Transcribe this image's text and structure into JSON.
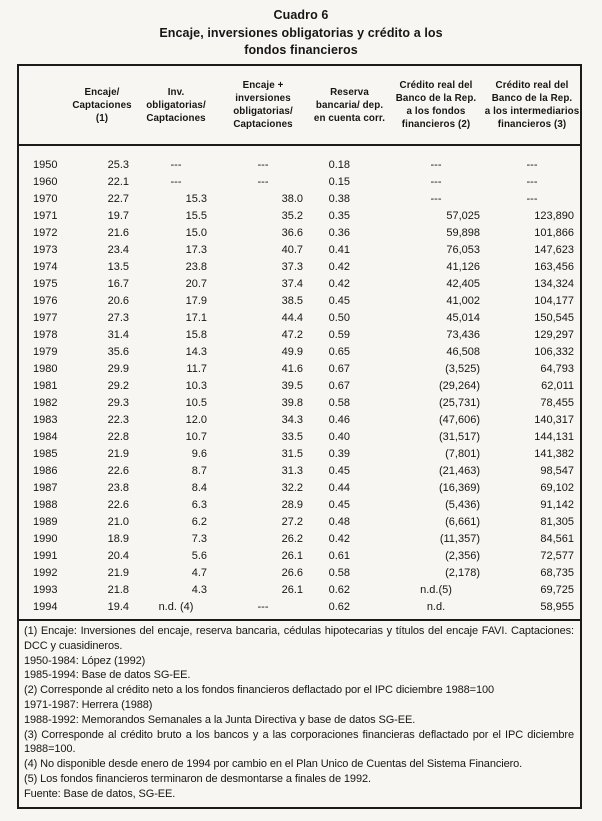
{
  "title": {
    "line1": "Cuadro 6",
    "line2": "Encaje, inversiones obligatorias y crédito a los",
    "line3": "fondos financieros"
  },
  "table": {
    "headers": [
      "",
      "Encaje/\nCaptaciones (1)",
      "Inv. obligatorias/\nCaptaciones",
      "Encaje + inversiones\nobligatorias/\nCaptaciones",
      "Reserva\nbancaria/ dep.\nen cuenta corr.",
      "Crédito real del\nBanco de la Rep.\na los fondos\nfinancieros (2)",
      "Crédito real del\nBanco de la Rep.\na los intermediarios\nfinancieros (3)"
    ],
    "rows": [
      [
        "1950",
        "25.3",
        "---",
        "---",
        "0.18",
        "---",
        "---"
      ],
      [
        "1960",
        "22.1",
        "---",
        "---",
        "0.15",
        "---",
        "---"
      ],
      [
        "1970",
        "22.7",
        "15.3",
        "38.0",
        "0.38",
        "---",
        "---"
      ],
      [
        "1971",
        "19.7",
        "15.5",
        "35.2",
        "0.35",
        "57,025",
        "123,890"
      ],
      [
        "1972",
        "21.6",
        "15.0",
        "36.6",
        "0.36",
        "59,898",
        "101,866"
      ],
      [
        "1973",
        "23.4",
        "17.3",
        "40.7",
        "0.41",
        "76,053",
        "147,623"
      ],
      [
        "1974",
        "13.5",
        "23.8",
        "37.3",
        "0.42",
        "41,126",
        "163,456"
      ],
      [
        "1975",
        "16.7",
        "20.7",
        "37.4",
        "0.42",
        "42,405",
        "134,324"
      ],
      [
        "1976",
        "20.6",
        "17.9",
        "38.5",
        "0.45",
        "41,002",
        "104,177"
      ],
      [
        "1977",
        "27.3",
        "17.1",
        "44.4",
        "0.50",
        "45,014",
        "150,545"
      ],
      [
        "1978",
        "31.4",
        "15.8",
        "47.2",
        "0.59",
        "73,436",
        "129,297"
      ],
      [
        "1979",
        "35.6",
        "14.3",
        "49.9",
        "0.65",
        "46,508",
        "106,332"
      ],
      [
        "1980",
        "29.9",
        "11.7",
        "41.6",
        "0.67",
        "(3,525)",
        "64,793"
      ],
      [
        "1981",
        "29.2",
        "10.3",
        "39.5",
        "0.67",
        "(29,264)",
        "62,011"
      ],
      [
        "1982",
        "29.3",
        "10.5",
        "39.8",
        "0.58",
        "(25,731)",
        "78,455"
      ],
      [
        "1983",
        "22.3",
        "12.0",
        "34.3",
        "0.46",
        "(47,606)",
        "140,317"
      ],
      [
        "1984",
        "22.8",
        "10.7",
        "33.5",
        "0.40",
        "(31,517)",
        "144,131"
      ],
      [
        "1985",
        "21.9",
        "9.6",
        "31.5",
        "0.39",
        "(7,801)",
        "141,382"
      ],
      [
        "1986",
        "22.6",
        "8.7",
        "31.3",
        "0.45",
        "(21,463)",
        "98,547"
      ],
      [
        "1987",
        "23.8",
        "8.4",
        "32.2",
        "0.44",
        "(16,369)",
        "69,102"
      ],
      [
        "1988",
        "22.6",
        "6.3",
        "28.9",
        "0.45",
        "(5,436)",
        "91,142"
      ],
      [
        "1989",
        "21.0",
        "6.2",
        "27.2",
        "0.48",
        "(6,661)",
        "81,305"
      ],
      [
        "1990",
        "18.9",
        "7.3",
        "26.2",
        "0.42",
        "(11,357)",
        "84,561"
      ],
      [
        "1991",
        "20.4",
        "5.6",
        "26.1",
        "0.61",
        "(2,356)",
        "72,577"
      ],
      [
        "1992",
        "21.9",
        "4.7",
        "26.6",
        "0.58",
        "(2,178)",
        "68,735"
      ],
      [
        "1993",
        "21.8",
        "4.3",
        "26.1",
        "0.62",
        "n.d.(5)",
        "69,725"
      ],
      [
        "1994",
        "19.4",
        "n.d. (4)",
        "---",
        "0.62",
        "n.d.",
        "58,955"
      ]
    ],
    "footnotes": [
      "(1)   Encaje: Inversiones del encaje, reserva bancaria, cédulas hipotecarias y títulos del encaje FAVI. Captaciones: DCC y cuasidineros.",
      "1950-1984: López (1992)",
      "1985-1994: Base de datos SG-EE.",
      "(2)  Corresponde al crédito neto a los fondos financieros deflactado por el IPC diciembre 1988=100",
      "1971-1987: Herrera (1988)",
      "1988-1992: Memorandos Semanales a la Junta Directiva y base de datos SG-EE.",
      "(3)  Corresponde al crédito bruto a los bancos y a las corporaciones financieras deflactado por el IPC diciembre 1988=100.",
      "(4)  No disponible desde enero de 1994 por cambio en el Plan Unico de Cuentas del Sistema Financiero.",
      "(5)  Los fondos financieros terminaron de desmontarse a finales de 1992.",
      "Fuente:  Base de datos, SG-EE."
    ]
  }
}
